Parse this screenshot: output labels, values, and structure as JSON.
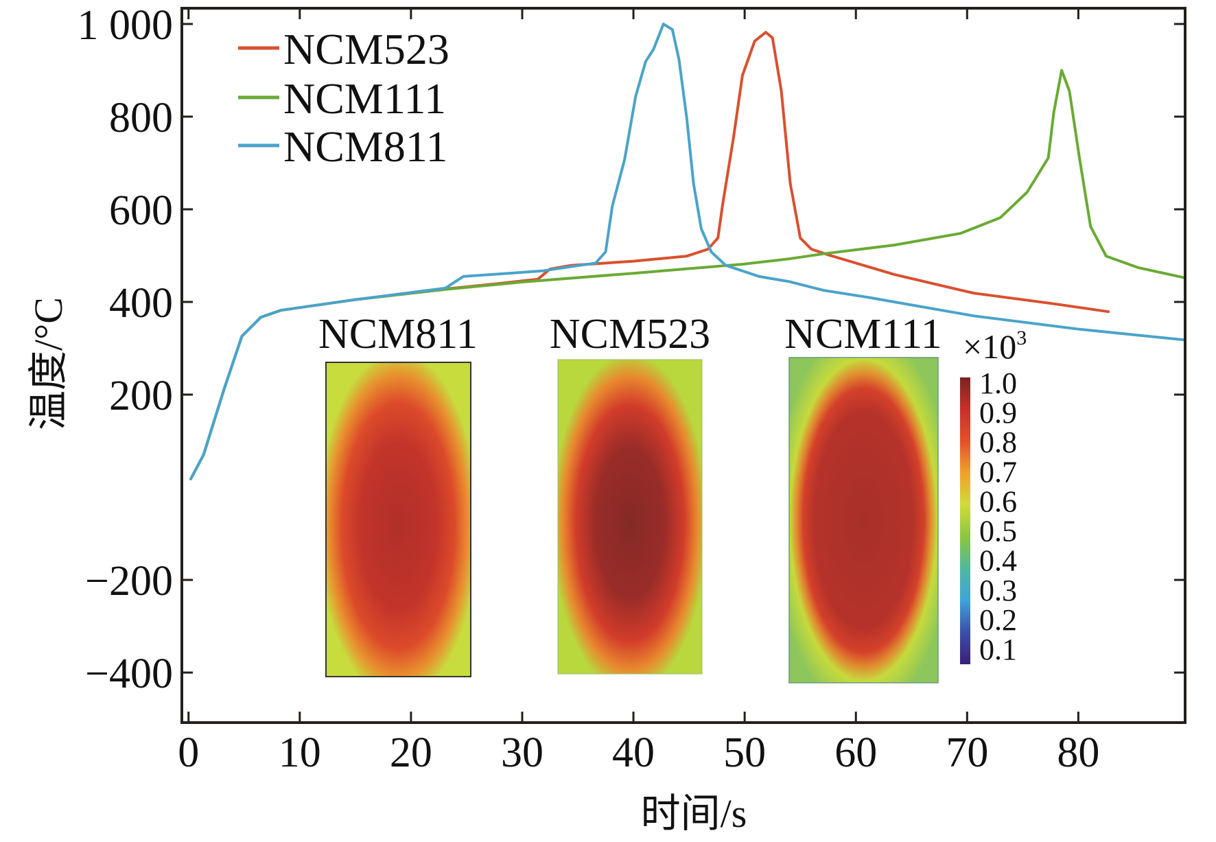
{
  "chart_data": {
    "type": "line",
    "title": "",
    "xlabel": "时间/s",
    "ylabel": "温度/°C",
    "xlim": [
      -0.6,
      89.6
    ],
    "ylim": [
      -508,
      1034
    ],
    "x_ticks": [
      0,
      10,
      20,
      30,
      40,
      50,
      60,
      70,
      80
    ],
    "x_tick_labels": [
      "0",
      "10",
      "20",
      "30",
      "40",
      "50",
      "60",
      "70",
      "80"
    ],
    "y_ticks": [
      1000,
      800,
      600,
      400,
      200,
      -200,
      -400
    ],
    "y_tick_labels": [
      "1 000",
      "800",
      "600",
      "400",
      "200",
      "−200",
      "−400"
    ],
    "grid": false,
    "legend_position": "top-left",
    "series": [
      {
        "name": "NCM523",
        "color": "#d9502f",
        "points": [
          [
            0.2,
            18
          ],
          [
            1.35,
            70
          ],
          [
            3.2,
            212
          ],
          [
            4.8,
            326
          ],
          [
            6.5,
            367
          ],
          [
            8.3,
            382
          ],
          [
            15,
            405
          ],
          [
            23.1,
            428
          ],
          [
            28,
            440
          ],
          [
            31.4,
            449
          ],
          [
            32.5,
            471
          ],
          [
            34.4,
            479
          ],
          [
            40,
            488
          ],
          [
            44.8,
            499
          ],
          [
            46.7,
            514
          ],
          [
            47.6,
            538
          ],
          [
            48.0,
            607
          ],
          [
            49.0,
            755
          ],
          [
            49.8,
            889
          ],
          [
            50.9,
            963
          ],
          [
            51.9,
            982
          ],
          [
            52.5,
            970
          ],
          [
            53.3,
            855
          ],
          [
            54.1,
            656
          ],
          [
            55.0,
            538
          ],
          [
            56.0,
            514
          ],
          [
            57.6,
            501
          ],
          [
            63.5,
            459
          ],
          [
            70.6,
            419
          ],
          [
            77.8,
            396
          ],
          [
            82.7,
            379
          ]
        ]
      },
      {
        "name": "NCM111",
        "color": "#6aaa35",
        "points": [
          [
            0.2,
            18
          ],
          [
            1.35,
            70
          ],
          [
            3.2,
            212
          ],
          [
            4.8,
            326
          ],
          [
            6.5,
            367
          ],
          [
            8.3,
            382
          ],
          [
            15,
            405
          ],
          [
            23.1,
            427
          ],
          [
            30,
            443
          ],
          [
            40,
            462
          ],
          [
            50,
            482
          ],
          [
            54.0,
            493
          ],
          [
            57.1,
            504
          ],
          [
            63.5,
            523
          ],
          [
            69.4,
            548
          ],
          [
            73.0,
            582
          ],
          [
            75.4,
            637
          ],
          [
            77.3,
            711
          ],
          [
            77.8,
            810
          ],
          [
            78.5,
            900
          ],
          [
            79.2,
            855
          ],
          [
            80.1,
            711
          ],
          [
            81.1,
            563
          ],
          [
            82.5,
            499
          ],
          [
            85.4,
            474
          ],
          [
            89.6,
            452
          ]
        ]
      },
      {
        "name": "NCM811",
        "color": "#4ba3c9",
        "points": [
          [
            0.2,
            18
          ],
          [
            1.35,
            70
          ],
          [
            3.2,
            212
          ],
          [
            4.8,
            326
          ],
          [
            6.5,
            367
          ],
          [
            8.3,
            382
          ],
          [
            15,
            405
          ],
          [
            23.1,
            430
          ],
          [
            24.7,
            455
          ],
          [
            31.8,
            467
          ],
          [
            36.6,
            484
          ],
          [
            37.5,
            508
          ],
          [
            38.1,
            607
          ],
          [
            39.2,
            707
          ],
          [
            40.2,
            844
          ],
          [
            41.1,
            919
          ],
          [
            41.8,
            945
          ],
          [
            42.7,
            1000
          ],
          [
            43.5,
            988
          ],
          [
            44.1,
            923
          ],
          [
            44.8,
            795
          ],
          [
            45.4,
            656
          ],
          [
            46.1,
            558
          ],
          [
            47.0,
            508
          ],
          [
            48.3,
            479
          ],
          [
            51.3,
            455
          ],
          [
            54.0,
            444
          ],
          [
            57.1,
            425
          ],
          [
            61.1,
            410
          ],
          [
            70.6,
            370
          ],
          [
            80.1,
            341
          ],
          [
            89.6,
            318
          ]
        ]
      }
    ],
    "insets": [
      {
        "label": "NCM811",
        "description": "temperature distribution map",
        "peak_scale_value": 0.9
      },
      {
        "label": "NCM523",
        "description": "temperature distribution map",
        "peak_scale_value": 1.0
      },
      {
        "label": "NCM111",
        "description": "temperature distribution map",
        "peak_scale_value": 0.9
      }
    ],
    "colorbar": {
      "multiplier_label": "×10",
      "multiplier_exponent": "3",
      "range": [
        0.1,
        1.0
      ],
      "tick_labels": [
        "1.0",
        "0.9",
        "0.8",
        "0.7",
        "0.6",
        "0.5",
        "0.4",
        "0.3",
        "0.2",
        "0.1"
      ],
      "colormap": [
        "#3b1f7a",
        "#3b4fa8",
        "#3fa3d8",
        "#4fb9a0",
        "#8cc63e",
        "#cfdc3a",
        "#f0a22b",
        "#e5502a",
        "#c8302a",
        "#7a2424"
      ]
    }
  }
}
